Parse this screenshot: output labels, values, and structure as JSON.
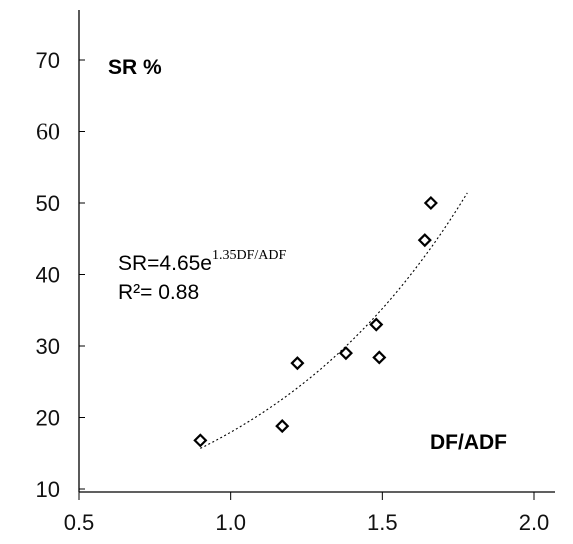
{
  "chart_data": {
    "type": "scatter",
    "ylabel": "SR %",
    "xlabel": "DF/ADF",
    "xlim": [
      0.5,
      2.0
    ],
    "ylim": [
      10,
      70
    ],
    "x_ticks": [
      "0.5",
      "1.0",
      "1.5",
      "2.0"
    ],
    "x_tick_values": [
      0.5,
      1.0,
      1.5,
      2.0
    ],
    "y_ticks": [
      "10",
      "20",
      "30",
      "40",
      "50",
      "60",
      "70"
    ],
    "y_tick_values": [
      10,
      20,
      30,
      40,
      50,
      60,
      70
    ],
    "y_tick_fonts": [
      "sans",
      "sans",
      "sans",
      "sans",
      "sans",
      "serif",
      "sans"
    ],
    "points": [
      {
        "x": 0.9,
        "y": 16.8
      },
      {
        "x": 1.17,
        "y": 18.8
      },
      {
        "x": 1.22,
        "y": 27.6
      },
      {
        "x": 1.38,
        "y": 29.0
      },
      {
        "x": 1.48,
        "y": 33.0
      },
      {
        "x": 1.49,
        "y": 28.4
      },
      {
        "x": 1.64,
        "y": 44.8
      },
      {
        "x": 1.66,
        "y": 50.0
      }
    ],
    "fit": {
      "type": "exponential",
      "a": 4.65,
      "b": 1.35,
      "x_range": [
        0.9,
        1.78
      ],
      "style": "dotted"
    },
    "equation": {
      "prefix": "SR=4.65e",
      "exponent": "1.35DF/ADF",
      "r2": "R²= 0.88"
    },
    "grid": false,
    "legend": "none"
  }
}
